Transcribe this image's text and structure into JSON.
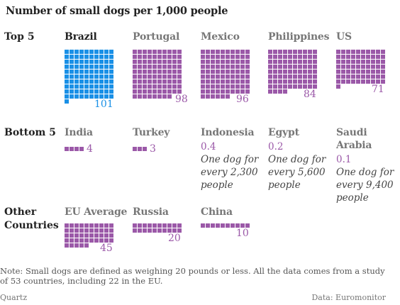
{
  "title": "Number of small dogs per 1,000 people",
  "rows": {
    "top": "Top 5",
    "bottom": "Bottom 5",
    "other": "Other Countries"
  },
  "colors": {
    "highlight": "#1a90e6",
    "default": "#9b59a8"
  },
  "chart_data": {
    "type": "waffle",
    "title": "Number of small dogs per 1,000 people",
    "unit": "small dogs per 1,000 people",
    "groups": [
      {
        "name": "Top 5",
        "items": [
          {
            "country": "Brazil",
            "value": 101,
            "label": "101",
            "highlight": true
          },
          {
            "country": "Portugal",
            "value": 98,
            "label": "98"
          },
          {
            "country": "Mexico",
            "value": 96,
            "label": "96"
          },
          {
            "country": "Philippines",
            "value": 84,
            "label": "84"
          },
          {
            "country": "US",
            "value": 71,
            "label": "71"
          }
        ]
      },
      {
        "name": "Bottom 5",
        "items": [
          {
            "country": "India",
            "value": 4,
            "label": "4"
          },
          {
            "country": "Turkey",
            "value": 3,
            "label": "3"
          },
          {
            "country": "Indonesia",
            "value": 0.4,
            "label": "0.4",
            "desc": "One dog for every 2,300 people"
          },
          {
            "country": "Egypt",
            "value": 0.2,
            "label": "0.2",
            "desc": "One dog for every 5,600 people"
          },
          {
            "country": "Saudi Arabia",
            "value": 0.1,
            "label": "0.1",
            "desc": "One dog for every 9,400 people"
          }
        ]
      },
      {
        "name": "Other Countries",
        "items": [
          {
            "country": "EU Average",
            "value": 45,
            "label": "45"
          },
          {
            "country": "Russia",
            "value": 20,
            "label": "20"
          },
          {
            "country": "China",
            "value": 10,
            "label": "10"
          }
        ]
      }
    ]
  },
  "note": "Note: Small dogs are defined as weighing 20 pounds or less. All the data comes from a study of 53 countries, including 22 in the EU.",
  "footer": {
    "left": "Quartz",
    "right": "Data: Euromonitor"
  }
}
